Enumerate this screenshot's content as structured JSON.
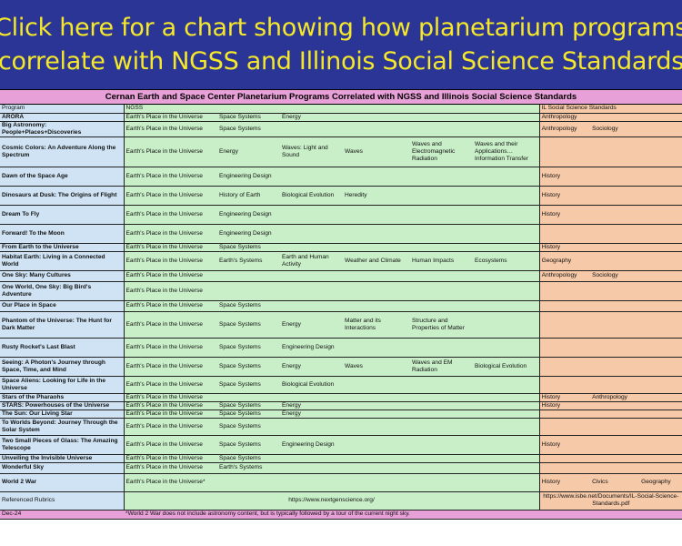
{
  "banner": {
    "line1": "Click here for a chart showing how planetarium programs",
    "line2": "correlate with NGSS and Illinois Social Science Standards"
  },
  "table_title": "Cernan Earth and Space Center Planetarium Programs Correlated with NGSS and Illinois Social Science Standards",
  "headers": {
    "program": "Program",
    "ngss": "NGSS",
    "il": "IL Social Science Standards"
  },
  "rows": [
    {
      "program": "ĀRŌRA",
      "ngss": [
        "Earth's Place in the Universe",
        "Space Systems",
        "Energy",
        "",
        "",
        ""
      ],
      "il": [
        "Anthropology",
        "",
        ""
      ]
    },
    {
      "program": "Big Astronomy: People+Places+Discoveries",
      "ngss": [
        "Earth's Place in the Universe",
        "Space Systems",
        "",
        "",
        "",
        ""
      ],
      "il": [
        "Anthropology",
        "Sociology",
        ""
      ]
    },
    {
      "program": "Cosmic Colors: An Adventure Along the Spectrum",
      "ngss": [
        "Earth's Place in the Universe",
        "Energy",
        "Waves: Light and Sound",
        "Waves",
        "Waves and Electromagnetic Radiation",
        "Waves and their Applications… Information Transfer"
      ],
      "il": [
        "",
        "",
        ""
      ]
    },
    {
      "program": "Dawn of the Space Age",
      "ngss": [
        "Earth's Place in the Universe",
        "Engineering Design",
        "",
        "",
        "",
        ""
      ],
      "il": [
        "History",
        "",
        ""
      ]
    },
    {
      "program": "Dinosaurs at Dusk: The Origins of Flight",
      "ngss": [
        "Earth's Place in the Universe",
        "History of Earth",
        "Biological Evolution",
        "Heredity",
        "",
        ""
      ],
      "il": [
        "History",
        "",
        ""
      ]
    },
    {
      "program": "Dream To Fly",
      "ngss": [
        "Earth's Place in the Universe",
        "Engineering Design",
        "",
        "",
        "",
        ""
      ],
      "il": [
        "History",
        "",
        ""
      ]
    },
    {
      "program": "Forward! To the Moon",
      "ngss": [
        "Earth's Place in the Universe",
        "Engineering Design",
        "",
        "",
        "",
        ""
      ],
      "il": [
        "",
        "",
        ""
      ]
    },
    {
      "program": "From Earth to the Universe",
      "ngss": [
        "Earth's Place in the Universe",
        "Space Systems",
        "",
        "",
        "",
        ""
      ],
      "il": [
        "History",
        "",
        ""
      ]
    },
    {
      "program": "Habitat Earth: Living in a Connected World",
      "ngss": [
        "Earth's Place in the Universe",
        "Earth's Systems",
        "Earth and Human Activity",
        "Weather and Climate",
        "Human Impacts",
        "Ecosystems"
      ],
      "il": [
        "Geography",
        "",
        ""
      ]
    },
    {
      "program": "One Sky: Many Cultures",
      "ngss": [
        "Earth's Place in the Universe",
        "",
        "",
        "",
        "",
        ""
      ],
      "il": [
        "Anthropology",
        "Sociology",
        ""
      ]
    },
    {
      "program": "One World, One Sky: Big Bird's Adventure",
      "ngss": [
        "Earth's Place in the Universe",
        "",
        "",
        "",
        "",
        ""
      ],
      "il": [
        "",
        "",
        ""
      ]
    },
    {
      "program": "Our Place in Space",
      "ngss": [
        "Earth's Place in the Universe",
        "Space Systems",
        "",
        "",
        "",
        ""
      ],
      "il": [
        "",
        "",
        ""
      ]
    },
    {
      "program": "Phantom of the Universe: The Hunt for Dark Matter",
      "ngss": [
        "Earth's Place in the Universe",
        "Space Systems",
        "Energy",
        "Matter and its Interactions",
        "Structure and Properties of Matter",
        ""
      ],
      "il": [
        "",
        "",
        ""
      ]
    },
    {
      "program": "Rusty Rocket's Last Blast",
      "ngss": [
        "Earth's Place in the Universe",
        "Space Systems",
        "Engineering Design",
        "",
        "",
        ""
      ],
      "il": [
        "",
        "",
        ""
      ]
    },
    {
      "program": "Seeing: A Photon's Journey through Space, Time, and Mind",
      "ngss": [
        "Earth's Place in the Universe",
        "Space Systems",
        "Energy",
        "Waves",
        "Waves and EM Radiation",
        "Biological Evolution"
      ],
      "il": [
        "",
        "",
        ""
      ]
    },
    {
      "program": "Space Aliens: Looking for Life in the Universe",
      "ngss": [
        "Earth's Place in the Universe",
        "Space Systems",
        "Biological Evolution",
        "",
        "",
        ""
      ],
      "il": [
        "",
        "",
        ""
      ]
    },
    {
      "program": "Stars of the Pharaohs",
      "ngss": [
        "Earth's Place in the Universe",
        "",
        "",
        "",
        "",
        ""
      ],
      "il": [
        "History",
        "Anthropology",
        ""
      ]
    },
    {
      "program": "STARS: Powerhouses of the Universe",
      "ngss": [
        "Earth's Place in the Universe",
        "Space Systems",
        "Energy",
        "",
        "",
        ""
      ],
      "il": [
        "History",
        "",
        ""
      ]
    },
    {
      "program": "The Sun: Our Living Star",
      "ngss": [
        "Earth's Place in the Universe",
        "Space Systems",
        "Energy",
        "",
        "",
        ""
      ],
      "il": [
        "",
        "",
        ""
      ]
    },
    {
      "program": "To Worlds Beyond: Journey Through the Solar System",
      "ngss": [
        "Earth's Place in the Universe",
        "Space Systems",
        "",
        "",
        "",
        ""
      ],
      "il": [
        "",
        "",
        ""
      ]
    },
    {
      "program": "Two Small Pieces of Glass: The Amazing Telescope",
      "ngss": [
        "Earth's Place in the Universe",
        "Space Systems",
        "Engineering Design",
        "",
        "",
        ""
      ],
      "il": [
        "History",
        "",
        ""
      ]
    },
    {
      "program": "Unveiling the Invisible Universe",
      "ngss": [
        "Earth's Place in the Universe",
        "Space Systems",
        "",
        "",
        "",
        ""
      ],
      "il": [
        "",
        "",
        ""
      ]
    },
    {
      "program": "Wonderful Sky",
      "ngss": [
        "Earth's Place in the Universe",
        "Earth's Systems",
        "",
        "",
        "",
        ""
      ],
      "il": [
        "",
        "",
        ""
      ]
    },
    {
      "program": "World 2 War",
      "ngss": [
        "Earth's Place in the Universe*",
        "",
        "",
        "",
        "",
        ""
      ],
      "il": [
        "History",
        "Civics",
        "Geography"
      ]
    }
  ],
  "rubrics": {
    "label": "Referenced Rubrics",
    "ngss_url": "https://www.nextgenscience.org/",
    "il_url": "https://www.isbe.net/Documents/IL-Social-Science-Standards.pdf"
  },
  "footer": {
    "date": "Dec-24",
    "note": "*World 2 War does not include astronomy content, but is typically followed by a tour of the current night sky."
  }
}
